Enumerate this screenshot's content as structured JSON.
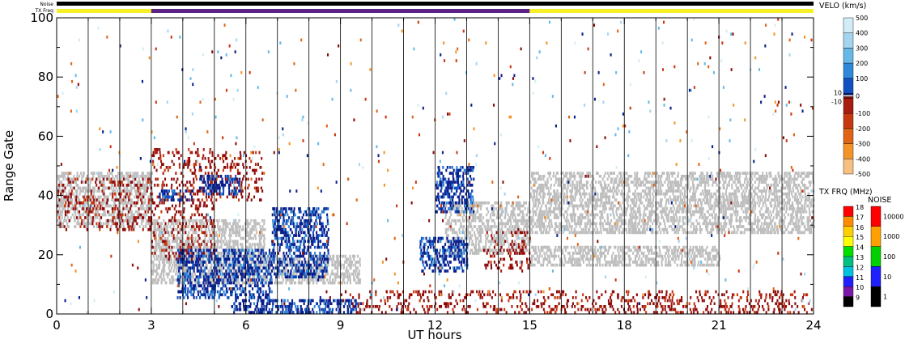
{
  "chart_data": {
    "type": "heatmap",
    "xlabel": "UT hours",
    "ylabel": "Range Gate",
    "xlim": [
      0,
      24
    ],
    "ylim": [
      0,
      100
    ],
    "x_ticks": [
      "0",
      "3",
      "6",
      "9",
      "12",
      "15",
      "18",
      "21",
      "24"
    ],
    "y_ticks": [
      "0",
      "20",
      "40",
      "60",
      "80",
      "100"
    ],
    "grid_hours": [
      1,
      2,
      3,
      4,
      5,
      6,
      7,
      8,
      9,
      10,
      11,
      12,
      13,
      14,
      15,
      16,
      17,
      18,
      19,
      20,
      21,
      22,
      23
    ],
    "status_bars": {
      "noise_label": "Noise",
      "txfreq_label": "TX Freq",
      "noise_color": "#000000",
      "txfreq_segments": [
        {
          "start": 0,
          "end": 3,
          "color": "#f5f028"
        },
        {
          "start": 3,
          "end": 15,
          "color": "#5a2385"
        },
        {
          "start": 15,
          "end": 24,
          "color": "#f5f028"
        }
      ]
    },
    "velocity_colorbar": {
      "title": "VELO (km/s)",
      "labels": [
        "500",
        "400",
        "300",
        "200",
        "100",
        "10",
        "0",
        "-10",
        "-100",
        "-200",
        "-300",
        "-400",
        "-500"
      ],
      "colors": [
        "#d2ecf8",
        "#a4d4f0",
        "#66b8e8",
        "#3088d8",
        "#1050c0",
        "#0a1e8c",
        "#8c0a0a",
        "#a81c10",
        "#c83810",
        "#e06414",
        "#f49428",
        "#f8c080"
      ]
    },
    "freq_colorbar": {
      "title": "TX FRQ (MHz)",
      "labels": [
        "18",
        "17",
        "16",
        "15",
        "14",
        "13",
        "12",
        "11",
        "10",
        "9"
      ],
      "colors": [
        "#ff0000",
        "#ff8c00",
        "#ffd000",
        "#ffff00",
        "#00e000",
        "#00c080",
        "#00c0e0",
        "#2020ff",
        "#7a18a8",
        "#000000"
      ]
    },
    "noise_colorbar": {
      "title": "NOISE",
      "labels": [
        "10000",
        "1000",
        "100",
        "10",
        "1"
      ],
      "colors": [
        "#ff0000",
        "#ffa000",
        "#00d000",
        "#2020ff",
        "#000000"
      ]
    },
    "ground_scatter_color": "#bebebe",
    "features": [
      {
        "kind": "ground",
        "x": [
          0.0,
          3.0
        ],
        "y": [
          29,
          48
        ]
      },
      {
        "kind": "ground",
        "x": [
          3.0,
          6.6
        ],
        "y": [
          10,
          32
        ]
      },
      {
        "kind": "ground",
        "x": [
          6.6,
          9.6
        ],
        "y": [
          10,
          20
        ]
      },
      {
        "kind": "ground",
        "x": [
          12.3,
          15.0
        ],
        "y": [
          20,
          38
        ]
      },
      {
        "kind": "ground",
        "x": [
          15.0,
          24.0
        ],
        "y": [
          27,
          48
        ]
      },
      {
        "kind": "ground",
        "x": [
          15.0,
          21.0
        ],
        "y": [
          16,
          23
        ]
      },
      {
        "kind": "negative",
        "x": [
          0.0,
          3.0
        ],
        "y": [
          28,
          46
        ]
      },
      {
        "kind": "negative",
        "x": [
          3.0,
          5.0
        ],
        "y": [
          18,
          56
        ]
      },
      {
        "kind": "negative",
        "x": [
          5.0,
          6.5
        ],
        "y": [
          38,
          55
        ]
      },
      {
        "kind": "negative",
        "x": [
          9.0,
          24.0
        ],
        "y": [
          0,
          8
        ]
      },
      {
        "kind": "negative",
        "x": [
          13.5,
          15.0
        ],
        "y": [
          14,
          28
        ]
      },
      {
        "kind": "positive",
        "x": [
          3.2,
          4.3
        ],
        "y": [
          38,
          42
        ]
      },
      {
        "kind": "positive",
        "x": [
          4.5,
          5.8
        ],
        "y": [
          40,
          47
        ]
      },
      {
        "kind": "positive",
        "x": [
          3.8,
          6.8
        ],
        "y": [
          5,
          22
        ]
      },
      {
        "kind": "positive",
        "x": [
          6.8,
          8.6
        ],
        "y": [
          12,
          36
        ]
      },
      {
        "kind": "positive",
        "x": [
          5.5,
          9.5
        ],
        "y": [
          0,
          5
        ]
      },
      {
        "kind": "positive",
        "x": [
          12.0,
          13.2
        ],
        "y": [
          34,
          50
        ]
      },
      {
        "kind": "positive",
        "x": [
          11.5,
          13.0
        ],
        "y": [
          14,
          26
        ]
      },
      {
        "kind": "scattered",
        "x": [
          0.0,
          24.0
        ],
        "y": [
          0,
          100
        ]
      }
    ]
  }
}
